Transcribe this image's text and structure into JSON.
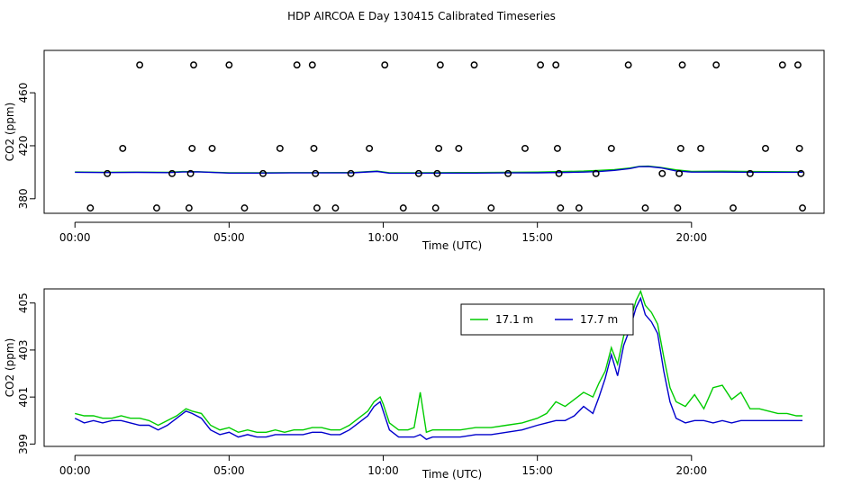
{
  "title": "HDP AIRCOA E  Day 130415  Calibrated Timeseries",
  "chart_data": [
    {
      "type": "line",
      "xlabel": "Time (UTC)",
      "ylabel": "CO2 (ppm)",
      "xlim": [
        -1.0,
        24.3
      ],
      "ylim": [
        369.0,
        492.0
      ],
      "x_ticks": [
        0,
        5,
        10,
        15,
        20
      ],
      "x_tick_labels": [
        "00:00",
        "05:00",
        "10:00",
        "15:00",
        "20:00"
      ],
      "y_ticks": [
        380,
        420,
        460
      ],
      "y_tick_labels": [
        "380",
        "420",
        "460"
      ],
      "grid": false,
      "calibration_points": [
        {
          "x": 0.5,
          "y": 373
        },
        {
          "x": 1.05,
          "y": 399
        },
        {
          "x": 1.55,
          "y": 418
        },
        {
          "x": 2.1,
          "y": 481
        },
        {
          "x": 2.65,
          "y": 373
        },
        {
          "x": 3.15,
          "y": 399
        },
        {
          "x": 3.7,
          "y": 373
        },
        {
          "x": 3.75,
          "y": 399
        },
        {
          "x": 3.8,
          "y": 418
        },
        {
          "x": 3.85,
          "y": 481
        },
        {
          "x": 4.45,
          "y": 418
        },
        {
          "x": 5.0,
          "y": 481
        },
        {
          "x": 5.5,
          "y": 373
        },
        {
          "x": 6.1,
          "y": 399
        },
        {
          "x": 6.65,
          "y": 418
        },
        {
          "x": 7.2,
          "y": 481
        },
        {
          "x": 7.7,
          "y": 481
        },
        {
          "x": 7.75,
          "y": 418
        },
        {
          "x": 7.8,
          "y": 399
        },
        {
          "x": 7.85,
          "y": 373
        },
        {
          "x": 8.45,
          "y": 373
        },
        {
          "x": 8.95,
          "y": 399
        },
        {
          "x": 9.55,
          "y": 418
        },
        {
          "x": 10.05,
          "y": 481
        },
        {
          "x": 10.65,
          "y": 373
        },
        {
          "x": 11.15,
          "y": 399
        },
        {
          "x": 11.7,
          "y": 373
        },
        {
          "x": 11.75,
          "y": 399
        },
        {
          "x": 11.8,
          "y": 418
        },
        {
          "x": 11.85,
          "y": 481
        },
        {
          "x": 12.45,
          "y": 418
        },
        {
          "x": 12.95,
          "y": 481
        },
        {
          "x": 13.5,
          "y": 373
        },
        {
          "x": 14.05,
          "y": 399
        },
        {
          "x": 14.6,
          "y": 418
        },
        {
          "x": 15.1,
          "y": 481
        },
        {
          "x": 15.6,
          "y": 481
        },
        {
          "x": 15.65,
          "y": 418
        },
        {
          "x": 15.7,
          "y": 399
        },
        {
          "x": 15.75,
          "y": 373
        },
        {
          "x": 16.35,
          "y": 373
        },
        {
          "x": 16.9,
          "y": 399
        },
        {
          "x": 17.4,
          "y": 418
        },
        {
          "x": 17.95,
          "y": 481
        },
        {
          "x": 18.5,
          "y": 373
        },
        {
          "x": 19.05,
          "y": 399
        },
        {
          "x": 19.55,
          "y": 373
        },
        {
          "x": 19.6,
          "y": 399
        },
        {
          "x": 19.65,
          "y": 418
        },
        {
          "x": 19.7,
          "y": 481
        },
        {
          "x": 20.3,
          "y": 418
        },
        {
          "x": 20.8,
          "y": 481
        },
        {
          "x": 21.35,
          "y": 373
        },
        {
          "x": 21.9,
          "y": 399
        },
        {
          "x": 22.4,
          "y": 418
        },
        {
          "x": 22.95,
          "y": 481
        },
        {
          "x": 23.45,
          "y": 481
        },
        {
          "x": 23.5,
          "y": 418
        },
        {
          "x": 23.55,
          "y": 399
        },
        {
          "x": 23.6,
          "y": 373
        }
      ],
      "series": [
        {
          "color": "#00cc00",
          "x": [
            0,
            1,
            2,
            3,
            3.5,
            4,
            5,
            6,
            7,
            8,
            9,
            9.8,
            10.2,
            11,
            12,
            13,
            14,
            15,
            16,
            16.5,
            17,
            17.5,
            18,
            18.3,
            18.6,
            19,
            19.5,
            20,
            21,
            22,
            23,
            23.6
          ],
          "y": [
            400.2,
            400.0,
            400.1,
            399.9,
            400.5,
            400.4,
            399.6,
            399.6,
            399.7,
            399.7,
            399.8,
            400.9,
            399.6,
            399.6,
            399.7,
            399.8,
            399.9,
            400.1,
            400.6,
            400.9,
            401.4,
            402.0,
            403.2,
            404.4,
            404.6,
            403.6,
            401.8,
            400.7,
            400.8,
            400.5,
            400.4,
            400.3
          ]
        },
        {
          "color": "#0000cc",
          "x": [
            0,
            1,
            2,
            3,
            3.5,
            4,
            5,
            6,
            7,
            8,
            9,
            9.8,
            10.2,
            11,
            12,
            13,
            14,
            15,
            16,
            16.5,
            17,
            17.5,
            18,
            18.3,
            18.6,
            19,
            19.5,
            20,
            21,
            22,
            23,
            23.6
          ],
          "y": [
            400.0,
            399.8,
            399.9,
            399.7,
            400.2,
            400.3,
            399.4,
            399.4,
            399.5,
            399.5,
            399.6,
            400.6,
            399.3,
            399.3,
            399.4,
            399.4,
            399.5,
            399.6,
            399.9,
            400.1,
            400.5,
            401.4,
            402.8,
            404.2,
            404.3,
            403.3,
            401.0,
            400.1,
            400.1,
            400.0,
            400.0,
            400.0
          ]
        }
      ]
    },
    {
      "type": "line",
      "xlabel": "Time (UTC)",
      "ylabel": "CO2 (ppm)",
      "xlim": [
        -1.0,
        24.3
      ],
      "ylim": [
        398.9,
        405.6
      ],
      "x_ticks": [
        0,
        5,
        10,
        15,
        20
      ],
      "x_tick_labels": [
        "00:00",
        "05:00",
        "10:00",
        "15:00",
        "20:00"
      ],
      "y_ticks": [
        399,
        401,
        403,
        405
      ],
      "y_tick_labels": [
        "399",
        "401",
        "403",
        "405"
      ],
      "grid": false,
      "legend_position": "top-right",
      "series": [
        {
          "name": "17.1 m",
          "color": "#00cc00",
          "x": [
            0,
            0.3,
            0.6,
            0.9,
            1.2,
            1.5,
            1.8,
            2.1,
            2.4,
            2.7,
            3.0,
            3.3,
            3.6,
            3.8,
            4.1,
            4.4,
            4.7,
            5.0,
            5.3,
            5.6,
            5.9,
            6.2,
            6.5,
            6.8,
            7.1,
            7.4,
            7.7,
            8.0,
            8.3,
            8.6,
            8.9,
            9.2,
            9.5,
            9.7,
            9.9,
            10.0,
            10.2,
            10.5,
            10.8,
            11.0,
            11.2,
            11.4,
            11.6,
            12.0,
            12.5,
            13.0,
            13.5,
            14.0,
            14.5,
            15.0,
            15.3,
            15.6,
            15.9,
            16.2,
            16.5,
            16.8,
            17.0,
            17.2,
            17.4,
            17.6,
            17.8,
            18.0,
            18.2,
            18.35,
            18.5,
            18.7,
            18.9,
            19.1,
            19.3,
            19.5,
            19.8,
            20.1,
            20.4,
            20.7,
            21.0,
            21.3,
            21.6,
            21.9,
            22.2,
            22.5,
            22.8,
            23.1,
            23.4,
            23.6
          ],
          "y": [
            400.3,
            400.2,
            400.2,
            400.1,
            400.1,
            400.2,
            400.1,
            400.1,
            400.0,
            399.8,
            400.0,
            400.2,
            400.5,
            400.4,
            400.3,
            399.8,
            399.6,
            399.7,
            399.5,
            399.6,
            399.5,
            399.5,
            399.6,
            399.5,
            399.6,
            399.6,
            399.7,
            399.7,
            399.6,
            399.6,
            399.8,
            400.1,
            400.4,
            400.8,
            401.0,
            400.7,
            399.9,
            399.6,
            399.6,
            399.7,
            401.2,
            399.5,
            399.6,
            399.6,
            399.6,
            399.7,
            399.7,
            399.8,
            399.9,
            400.1,
            400.3,
            400.8,
            400.6,
            400.9,
            401.2,
            401.0,
            401.6,
            402.1,
            403.1,
            402.4,
            403.6,
            404.2,
            405.1,
            405.5,
            404.9,
            404.6,
            404.1,
            402.7,
            401.4,
            400.8,
            400.6,
            401.1,
            400.5,
            401.4,
            401.5,
            400.9,
            401.2,
            400.5,
            400.5,
            400.4,
            400.3,
            400.3,
            400.2,
            400.2
          ]
        },
        {
          "name": "17.7 m",
          "color": "#0000cc",
          "x": [
            0,
            0.3,
            0.6,
            0.9,
            1.2,
            1.5,
            1.8,
            2.1,
            2.4,
            2.7,
            3.0,
            3.3,
            3.6,
            3.8,
            4.1,
            4.4,
            4.7,
            5.0,
            5.3,
            5.6,
            5.9,
            6.2,
            6.5,
            6.8,
            7.1,
            7.4,
            7.7,
            8.0,
            8.3,
            8.6,
            8.9,
            9.2,
            9.5,
            9.7,
            9.9,
            10.0,
            10.2,
            10.5,
            10.8,
            11.0,
            11.2,
            11.4,
            11.6,
            12.0,
            12.5,
            13.0,
            13.5,
            14.0,
            14.5,
            15.0,
            15.3,
            15.6,
            15.9,
            16.2,
            16.5,
            16.8,
            17.0,
            17.2,
            17.4,
            17.6,
            17.8,
            18.0,
            18.2,
            18.35,
            18.5,
            18.7,
            18.9,
            19.1,
            19.3,
            19.5,
            19.8,
            20.1,
            20.4,
            20.7,
            21.0,
            21.3,
            21.6,
            21.9,
            22.2,
            22.5,
            22.8,
            23.1,
            23.4,
            23.6
          ],
          "y": [
            400.1,
            399.9,
            400.0,
            399.9,
            400.0,
            400.0,
            399.9,
            399.8,
            399.8,
            399.6,
            399.8,
            400.1,
            400.4,
            400.3,
            400.1,
            399.6,
            399.4,
            399.5,
            399.3,
            399.4,
            399.3,
            399.3,
            399.4,
            399.4,
            399.4,
            399.4,
            399.5,
            399.5,
            399.4,
            399.4,
            399.6,
            399.9,
            400.2,
            400.6,
            400.8,
            400.4,
            399.6,
            399.3,
            399.3,
            399.3,
            399.4,
            399.2,
            399.3,
            399.3,
            399.3,
            399.4,
            399.4,
            399.5,
            399.6,
            399.8,
            399.9,
            400.0,
            400.0,
            400.2,
            400.6,
            400.3,
            401.0,
            401.8,
            402.8,
            401.9,
            403.2,
            403.9,
            404.8,
            405.2,
            404.5,
            404.2,
            403.7,
            402.1,
            400.8,
            400.1,
            399.9,
            400.0,
            400.0,
            399.9,
            400.0,
            399.9,
            400.0,
            400.0,
            400.0,
            400.0,
            400.0,
            400.0,
            400.0,
            400.0
          ]
        }
      ]
    }
  ]
}
